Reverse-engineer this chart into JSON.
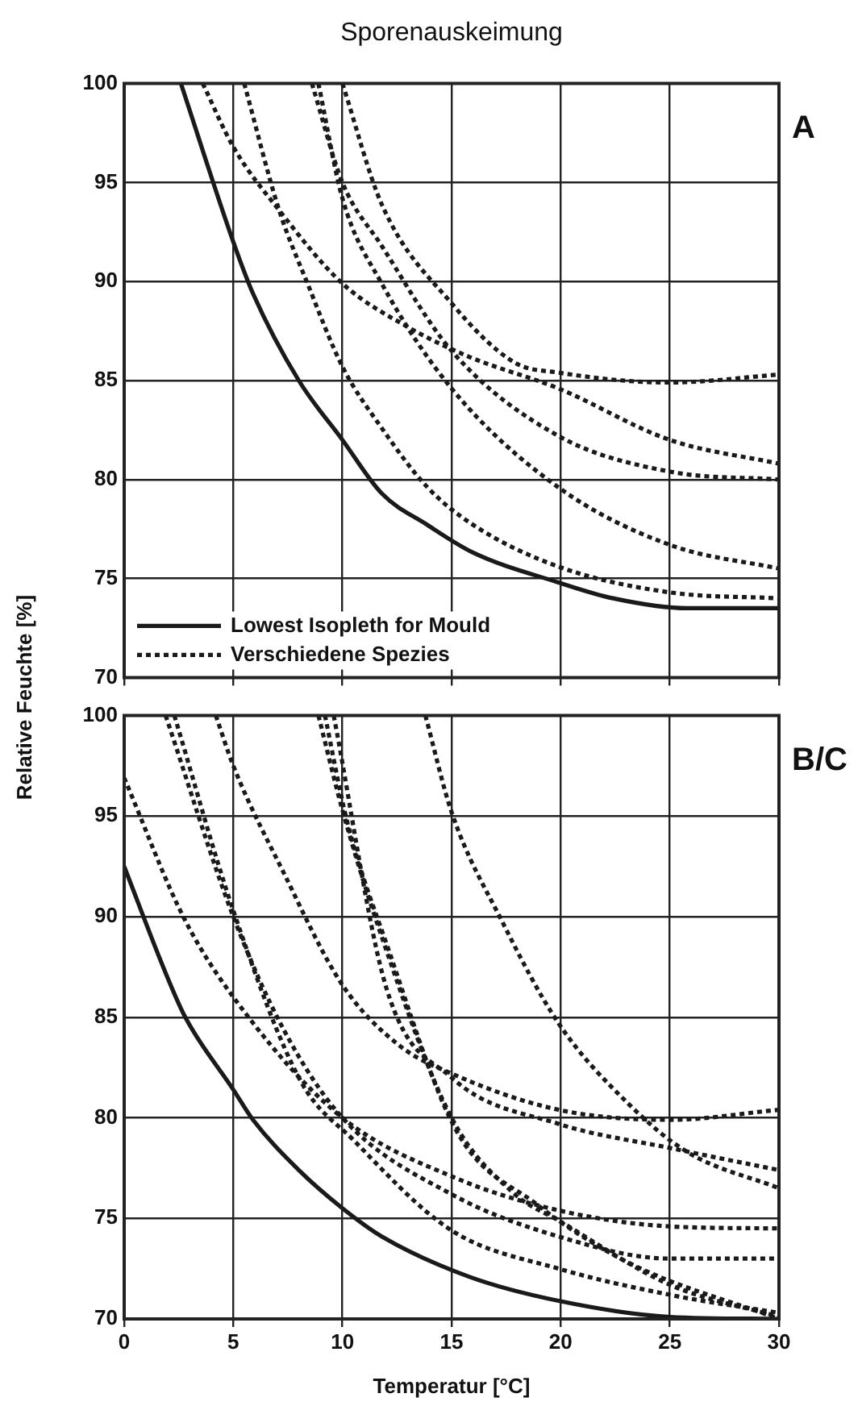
{
  "chart_data": [
    {
      "type": "line",
      "title": "Sporenauskeimung",
      "ylabel": "Relative Feuchte [%]",
      "annotations": [
        "A"
      ],
      "xlim": [
        0,
        30
      ],
      "xticks": [
        0,
        5,
        10,
        15,
        20,
        25,
        30
      ],
      "ylim": [
        70,
        100
      ],
      "yticks": [
        70,
        75,
        80,
        85,
        90,
        95,
        100
      ],
      "grid": true,
      "legend": "bottom left",
      "tick_labels": "y",
      "marker": "none",
      "series": [
        {
          "name": "Lowest Isopleth for Mould",
          "color": "#1a1a1a",
          "line_style": "solid",
          "x": [
            2.6,
            5,
            5.9,
            8,
            10,
            11.8,
            13.9,
            16,
            19.9,
            22.4,
            25.8,
            30
          ],
          "values": [
            100,
            92,
            89.4,
            85,
            82,
            79.3,
            77.7,
            76.3,
            74.8,
            74,
            73.5,
            73.5
          ]
        },
        {
          "name": "Verschiedene Spezies",
          "color": "#1a1a1a",
          "line_style": "dotted",
          "x": [
            3.6,
            5,
            7.1,
            10,
            13,
            15.8,
            19.9,
            25,
            30
          ],
          "values": [
            100,
            96.8,
            93.6,
            89.9,
            87.7,
            86.2,
            84.6,
            82,
            80.8
          ]
        },
        {
          "color": "#1a1a1a",
          "line_style": "dotted",
          "x": [
            5.5,
            7.1,
            8.4,
            10,
            11.8,
            13.9,
            16,
            19.9,
            25,
            30
          ],
          "values": [
            100,
            93.6,
            89.9,
            85.7,
            82.6,
            79.6,
            77.7,
            75.6,
            74.3,
            74
          ]
        },
        {
          "color": "#1a1a1a",
          "line_style": "dotted",
          "x": [
            8.6,
            10,
            11.8,
            15,
            19.9,
            25,
            30
          ],
          "values": [
            100,
            95,
            91.8,
            86.5,
            82.2,
            80.4,
            80
          ]
        },
        {
          "color": "#1a1a1a",
          "line_style": "dotted",
          "x": [
            8.9,
            10,
            11.8,
            15,
            19.9,
            25,
            30
          ],
          "values": [
            100,
            94.2,
            89.9,
            84.6,
            79.6,
            76.7,
            75.5
          ]
        },
        {
          "color": "#1a1a1a",
          "line_style": "dotted",
          "x": [
            10,
            11.8,
            15,
            17.9,
            19.9,
            25,
            30
          ],
          "values": [
            100,
            93.9,
            88.9,
            85.9,
            85.4,
            84.9,
            85.3
          ]
        }
      ]
    },
    {
      "type": "line",
      "xlabel": "Temperatur [°C]",
      "annotations": [
        "B/C"
      ],
      "xlim": [
        0,
        30
      ],
      "xticks": [
        0,
        5,
        10,
        15,
        20,
        25,
        30
      ],
      "ylim": [
        70,
        100
      ],
      "yticks": [
        70,
        75,
        80,
        85,
        90,
        95,
        100
      ],
      "grid": true,
      "marker": "none",
      "series": [
        {
          "color": "#1a1a1a",
          "line_style": "solid",
          "x": [
            0,
            1.9,
            2.8,
            5,
            5.9,
            8,
            10,
            11.8,
            15.8,
            19.9,
            25,
            30
          ],
          "values": [
            92.5,
            87.2,
            85,
            81.4,
            79.9,
            77.4,
            75.5,
            74.1,
            72.1,
            70.9,
            70.1,
            70
          ]
        },
        {
          "color": "#1a1a1a",
          "line_style": "dotted",
          "x": [
            0,
            2.8,
            5.7,
            10,
            15.2,
            19.9,
            25,
            30
          ],
          "values": [
            96.9,
            89.8,
            85,
            80,
            77,
            75.4,
            74.6,
            74.5
          ]
        },
        {
          "color": "#1a1a1a",
          "line_style": "dotted",
          "x": [
            1.9,
            5,
            7.3,
            10,
            15,
            19.9,
            25,
            30
          ],
          "values": [
            100,
            90,
            84.4,
            80,
            76.2,
            74.1,
            73,
            73
          ]
        },
        {
          "color": "#1a1a1a",
          "line_style": "dotted",
          "x": [
            2.3,
            5,
            8.1,
            10.5,
            15,
            19.9,
            25,
            30
          ],
          "values": [
            100,
            90.3,
            81.8,
            78.9,
            74.4,
            72.5,
            71.2,
            70.3
          ]
        },
        {
          "color": "#1a1a1a",
          "line_style": "dotted",
          "x": [
            4.2,
            5,
            7.3,
            10,
            12.6,
            15,
            19.9,
            25,
            30
          ],
          "values": [
            100,
            97.5,
            92.2,
            86.6,
            83.6,
            82.2,
            80.4,
            79.9,
            80.4
          ]
        },
        {
          "color": "#1a1a1a",
          "line_style": "dotted",
          "x": [
            8.9,
            10,
            11.8,
            15,
            17.9,
            19.9,
            25,
            30
          ],
          "values": [
            100,
            95.3,
            89,
            80,
            76.2,
            74.9,
            71.7,
            70.1
          ]
        },
        {
          "color": "#1a1a1a",
          "line_style": "dotted",
          "x": [
            9.2,
            10.2,
            12.1,
            15.2,
            18.9,
            23.1,
            30
          ],
          "values": [
            100,
            94.8,
            88.4,
            79.4,
            75.7,
            72.8,
            70
          ]
        },
        {
          "color": "#1a1a1a",
          "line_style": "dotted",
          "x": [
            13.8,
            15,
            17.3,
            19.9,
            23.1,
            25.8,
            30
          ],
          "values": [
            100,
            95.2,
            89.8,
            84.7,
            80.7,
            78.3,
            76.5
          ]
        },
        {
          "color": "#1a1a1a",
          "line_style": "dotted",
          "x": [
            9.6,
            12,
            15,
            19.9,
            25,
            30
          ],
          "values": [
            100,
            86.5,
            82,
            79.7,
            78.5,
            77.4
          ]
        }
      ]
    }
  ]
}
